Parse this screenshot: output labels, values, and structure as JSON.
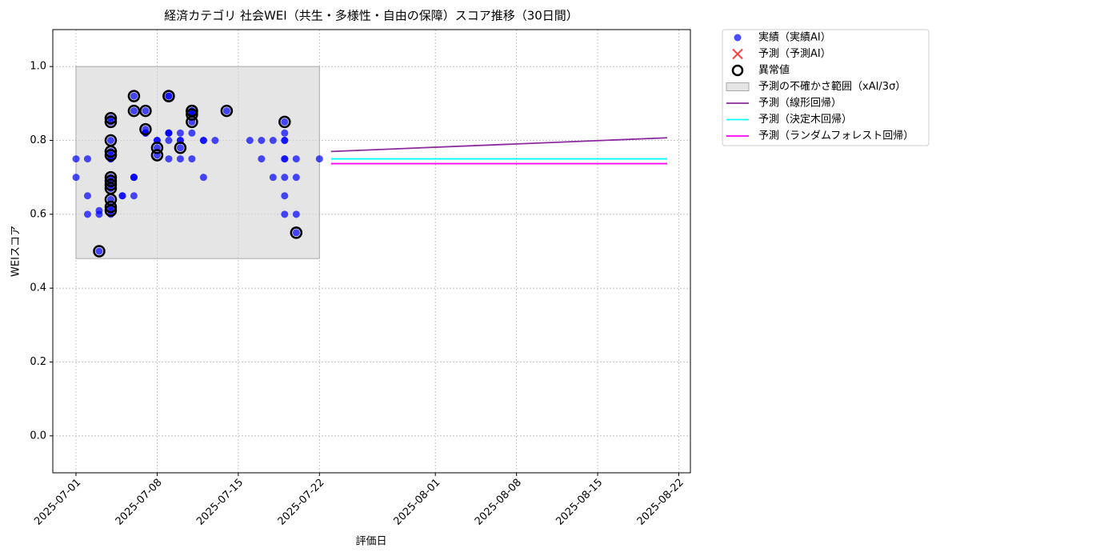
{
  "chart_data": {
    "type": "scatter",
    "title": "経済カテゴリ 社会WEI（共生・多様性・自由の保障）スコア推移（30日間）",
    "x_label": "評価日",
    "y_label": "WEIスコア",
    "xlim": [
      "2025-06-29",
      "2025-08-23"
    ],
    "ylim": [
      -0.1,
      1.1
    ],
    "xticks": [
      "2025-07-01",
      "2025-07-08",
      "2025-07-15",
      "2025-07-22",
      "2025-08-01",
      "2025-08-08",
      "2025-08-15",
      "2025-08-22"
    ],
    "yticks": [
      {
        "value": 0,
        "label": "0.0"
      },
      0.2,
      0.4,
      0.6,
      0.8,
      {
        "value": 1,
        "label": "1.0"
      }
    ],
    "grid": true,
    "legend": "outside upper right",
    "series": [
      {
        "name": "実績（実績AI）",
        "color": "#0000ff",
        "marker": "o",
        "x": [
          "2025-07-01",
          "2025-07-01",
          "2025-07-02",
          "2025-07-02",
          "2025-07-02",
          "2025-07-03",
          "2025-07-03",
          "2025-07-03",
          "2025-07-04",
          "2025-07-04",
          "2025-07-04",
          "2025-07-04",
          "2025-07-04",
          "2025-07-04",
          "2025-07-04",
          "2025-07-04",
          "2025-07-04",
          "2025-07-04",
          "2025-07-04",
          "2025-07-04",
          "2025-07-04",
          "2025-07-04",
          "2025-07-04",
          "2025-07-05",
          "2025-07-05",
          "2025-07-06",
          "2025-07-06",
          "2025-07-06",
          "2025-07-06",
          "2025-07-06",
          "2025-07-06",
          "2025-07-07",
          "2025-07-07",
          "2025-07-07",
          "2025-07-07",
          "2025-07-07",
          "2025-07-08",
          "2025-07-08",
          "2025-07-08",
          "2025-07-08",
          "2025-07-09",
          "2025-07-09",
          "2025-07-09",
          "2025-07-09",
          "2025-07-09",
          "2025-07-09",
          "2025-07-09",
          "2025-07-10",
          "2025-07-10",
          "2025-07-10",
          "2025-07-10",
          "2025-07-10",
          "2025-07-11",
          "2025-07-11",
          "2025-07-11",
          "2025-07-11",
          "2025-07-11",
          "2025-07-11",
          "2025-07-11",
          "2025-07-12",
          "2025-07-12",
          "2025-07-12",
          "2025-07-13",
          "2025-07-14",
          "2025-07-16",
          "2025-07-17",
          "2025-07-17",
          "2025-07-18",
          "2025-07-18",
          "2025-07-19",
          "2025-07-19",
          "2025-07-19",
          "2025-07-19",
          "2025-07-19",
          "2025-07-19",
          "2025-07-19",
          "2025-07-19",
          "2025-07-19",
          "2025-07-20",
          "2025-07-20",
          "2025-07-20",
          "2025-07-20",
          "2025-07-22"
        ],
        "values": [
          0.75,
          0.7,
          0.75,
          0.65,
          0.6,
          0.5,
          0.6,
          0.61,
          0.86,
          0.85,
          0.8,
          0.77,
          0.76,
          0.75,
          0.7,
          0.69,
          0.68,
          0.67,
          0.64,
          0.62,
          0.61,
          0.75,
          0.6,
          0.65,
          0.65,
          0.7,
          0.7,
          0.92,
          0.88,
          0.7,
          0.65,
          0.88,
          0.82,
          0.83,
          0.82,
          0.82,
          0.78,
          0.8,
          0.76,
          0.8,
          0.92,
          0.8,
          0.82,
          0.75,
          0.82,
          0.92,
          0.82,
          0.78,
          0.82,
          0.75,
          0.8,
          0.8,
          0.82,
          0.75,
          0.88,
          0.85,
          0.87,
          0.88,
          0.87,
          0.8,
          0.7,
          0.8,
          0.8,
          0.88,
          0.8,
          0.8,
          0.75,
          0.8,
          0.7,
          0.8,
          0.85,
          0.82,
          0.75,
          0.8,
          0.75,
          0.7,
          0.65,
          0.6,
          0.75,
          0.7,
          0.6,
          0.55,
          0.75
        ]
      },
      {
        "name": "予測（予測AI）",
        "color": "#ff0000",
        "marker": "x",
        "x": [],
        "values": []
      },
      {
        "name": "異常値",
        "color": "#000000",
        "marker": "ring",
        "x": [
          "2025-07-03",
          "2025-07-04",
          "2025-07-04",
          "2025-07-04",
          "2025-07-04",
          "2025-07-04",
          "2025-07-04",
          "2025-07-04",
          "2025-07-04",
          "2025-07-04",
          "2025-07-04",
          "2025-07-04",
          "2025-07-04",
          "2025-07-06",
          "2025-07-06",
          "2025-07-07",
          "2025-07-07",
          "2025-07-08",
          "2025-07-08",
          "2025-07-09",
          "2025-07-09",
          "2025-07-10",
          "2025-07-11",
          "2025-07-11",
          "2025-07-11",
          "2025-07-11",
          "2025-07-14",
          "2025-07-19",
          "2025-07-20"
        ],
        "values": [
          0.5,
          0.86,
          0.85,
          0.8,
          0.77,
          0.76,
          0.7,
          0.69,
          0.68,
          0.67,
          0.64,
          0.62,
          0.61,
          0.92,
          0.88,
          0.88,
          0.83,
          0.78,
          0.76,
          0.92,
          0.92,
          0.78,
          0.88,
          0.85,
          0.88,
          0.87,
          0.88,
          0.85,
          0.55
        ]
      },
      {
        "name": "予測の不確かさ範囲（xAI/3σ）",
        "color": "#d3d3d3",
        "marker": "band",
        "x": [
          "2025-07-01",
          "2025-07-22"
        ],
        "values": [
          1.0,
          1.0
        ],
        "lower": [
          0.48,
          0.48
        ]
      },
      {
        "name": "予測（線形回帰）",
        "color": "#8b2a9e",
        "marker": "line",
        "x": [
          "2025-07-23",
          "2025-08-21"
        ],
        "values": [
          0.77,
          0.807
        ]
      },
      {
        "name": "予測（決定木回帰）",
        "color": "#00ffff",
        "marker": "line",
        "x": [
          "2025-07-23",
          "2025-08-21"
        ],
        "values": [
          0.75,
          0.75
        ]
      },
      {
        "name": "予測（ランダムフォレスト回帰）",
        "color": "#ff00ff",
        "marker": "line",
        "x": [
          "2025-07-23",
          "2025-08-21"
        ],
        "values": [
          0.737,
          0.737
        ]
      }
    ]
  }
}
